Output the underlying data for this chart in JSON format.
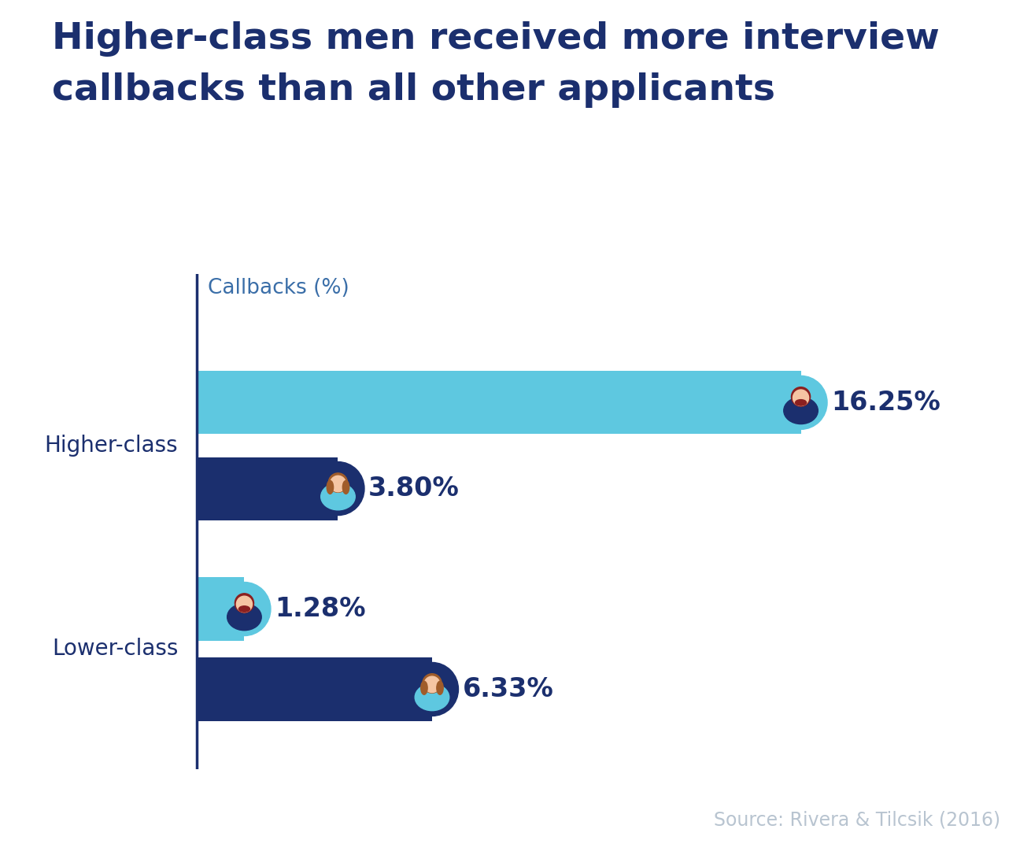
{
  "title_line1": "Higher-class men received more interview",
  "title_line2": "callbacks than all other applicants",
  "title_color": "#1b2f6e",
  "title_fontsize": 34,
  "ylabel_label": "Callbacks (%)",
  "ylabel_color": "#3a6ea8",
  "ylabel_fontsize": 19,
  "source_text": "Source: Rivera & Tilcsik (2016)",
  "source_color": "#b8c4d0",
  "source_fontsize": 17,
  "background_color": "#ffffff",
  "axis_color": "#1b2f6e",
  "categories": [
    "Higher-class",
    "Lower-class"
  ],
  "male_values": [
    16.25,
    1.28
  ],
  "female_values": [
    3.8,
    6.33
  ],
  "male_labels": [
    "16.25%",
    "1.28%"
  ],
  "female_labels": [
    "3.80%",
    "6.33%"
  ],
  "male_color": "#5ec8e0",
  "female_color": "#1b2f6e",
  "male_avatar_bg": "#5ec8e0",
  "female_avatar_bg": "#1b2f6e",
  "label_color": "#1b2f6e",
  "label_fontsize": 24,
  "category_fontsize": 20,
  "category_color": "#1b2f6e",
  "max_value": 18,
  "skin_color_male": "#f5c5a3",
  "skin_color_female": "#f5c5a3",
  "hair_color_male": "#8b2020",
  "hair_color_female": "#a05c2a",
  "shirt_color_male": "#1b2f6e",
  "shirt_color_female": "#5ec8e0",
  "beard_color": "#8b2020"
}
